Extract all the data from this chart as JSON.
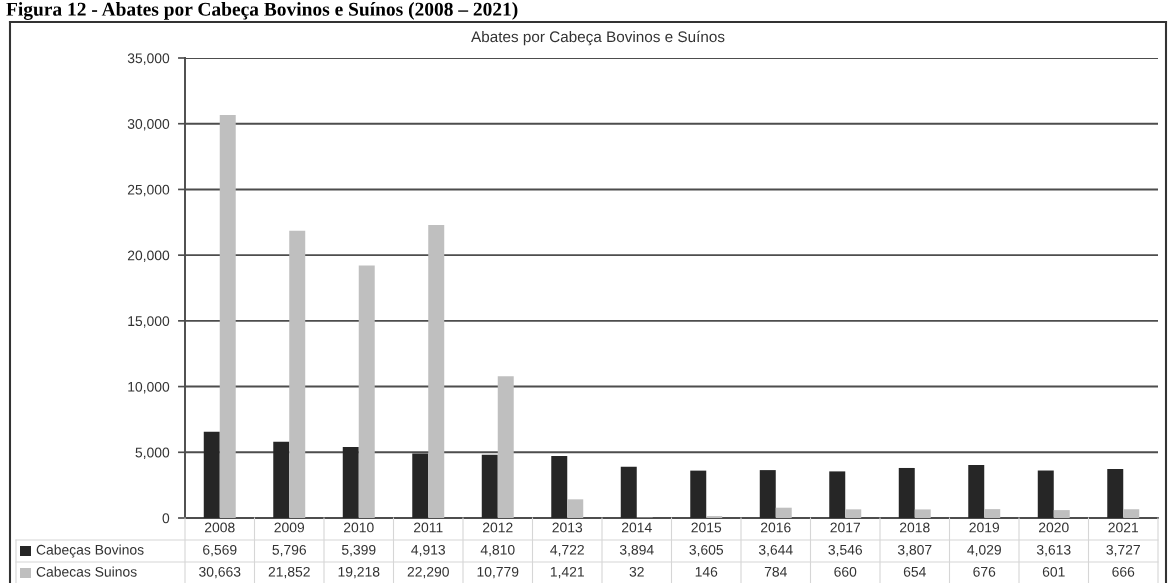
{
  "chart_data": {
    "type": "bar",
    "title": "Figura 12 - Abates por Cabeça Bovinos e Suínos (2008 – 2021)",
    "subtitle": "Abates por Cabeça Bovinos e Suínos",
    "categories": [
      "2008",
      "2009",
      "2010",
      "2011",
      "2012",
      "2013",
      "2014",
      "2015",
      "2016",
      "2017",
      "2018",
      "2019",
      "2020",
      "2021"
    ],
    "series": [
      {
        "name": "Cabeças Bovinos",
        "color": "#262626",
        "values": [
          6569,
          5796,
          5399,
          4913,
          4810,
          4722,
          3894,
          3605,
          3644,
          3546,
          3807,
          4029,
          3613,
          3727
        ],
        "value_labels": [
          "6,569",
          "5,796",
          "5,399",
          "4,913",
          "4,810",
          "4,722",
          "3,894",
          "3,605",
          "3,644",
          "3,546",
          "3,807",
          "4,029",
          "3,613",
          "3,727"
        ]
      },
      {
        "name": "Cabecas Suinos",
        "color": "#bfbfbf",
        "values": [
          30663,
          21852,
          19218,
          22290,
          10779,
          1421,
          32,
          146,
          784,
          660,
          654,
          676,
          601,
          666
        ],
        "value_labels": [
          "30,663",
          "21,852",
          "19,218",
          "22,290",
          "10,779",
          "1,421",
          "32",
          "146",
          "784",
          "660",
          "654",
          "676",
          "601",
          "666"
        ]
      }
    ],
    "ylim": [
      0,
      35000
    ],
    "yticks": [
      0,
      {
        "value": 5000,
        "label": "5,000"
      },
      {
        "value": 10000,
        "label": "10,000"
      },
      {
        "value": 15000,
        "label": "15,000"
      },
      {
        "value": 20000,
        "label": "20,000"
      },
      {
        "value": 25000,
        "label": "25,000"
      },
      {
        "value": 30000,
        "label": "30,000"
      },
      {
        "value": 35000,
        "label": "35,000"
      }
    ],
    "grid": "y",
    "legend": "bottom left"
  }
}
